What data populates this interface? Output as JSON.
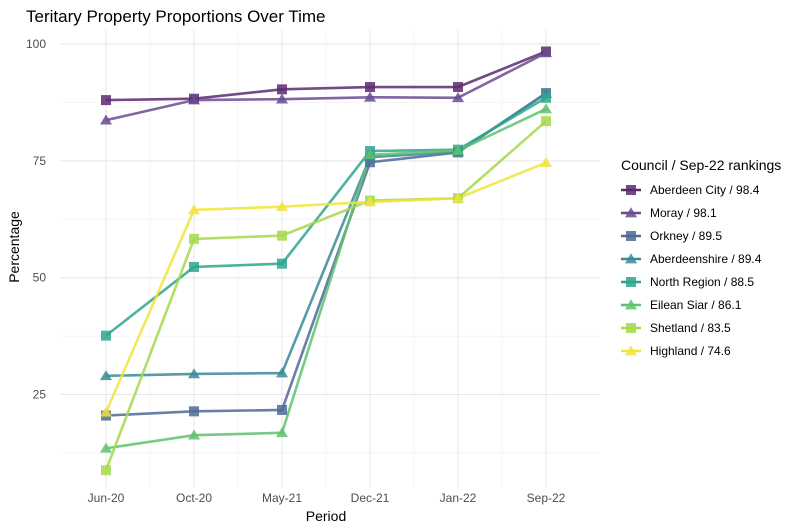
{
  "chart_data": {
    "type": "line",
    "title": "Teritary Property Proportions Over Time",
    "xlabel": "Period",
    "ylabel": "Percentage",
    "categories": [
      "Jun-20",
      "Oct-20",
      "May-21",
      "Dec-21",
      "Jan-22",
      "Sep-22"
    ],
    "ylim": [
      5,
      103
    ],
    "yticks": [
      25,
      50,
      75,
      100
    ],
    "grid": true,
    "legend": {
      "title": "Council / Sep-22 rankings",
      "position": "right"
    },
    "series": [
      {
        "name": "Aberdeen City / 98.4",
        "marker": "square",
        "color": "#5b2a6e",
        "values": [
          88.0,
          88.3,
          90.3,
          90.8,
          90.8,
          98.4
        ]
      },
      {
        "name": "Moray / 98.1",
        "marker": "triangle",
        "color": "#6a4b93",
        "values": [
          83.7,
          88.0,
          88.2,
          88.6,
          88.5,
          98.1
        ]
      },
      {
        "name": "Orkney / 89.5",
        "marker": "square",
        "color": "#4f6a96",
        "values": [
          20.5,
          21.4,
          21.7,
          74.7,
          76.8,
          89.5
        ]
      },
      {
        "name": "Aberdeenshire / 89.4",
        "marker": "triangle",
        "color": "#3a8a99",
        "values": [
          29.0,
          29.4,
          29.6,
          75.8,
          76.9,
          89.4
        ]
      },
      {
        "name": "North Region / 88.5",
        "marker": "square",
        "color": "#2ea58d",
        "values": [
          37.6,
          52.3,
          53.0,
          77.1,
          77.4,
          88.5
        ]
      },
      {
        "name": "Eilean Siar / 86.1",
        "marker": "triangle",
        "color": "#5ec26f",
        "values": [
          13.5,
          16.3,
          16.8,
          76.3,
          77.2,
          86.1
        ]
      },
      {
        "name": "Shetland / 83.5",
        "marker": "square",
        "color": "#a6d84b",
        "values": [
          8.8,
          58.3,
          59.0,
          66.5,
          67.0,
          83.5
        ]
      },
      {
        "name": "Highland / 74.6",
        "marker": "triangle",
        "color": "#f2e33b",
        "values": [
          21.2,
          64.5,
          65.2,
          66.2,
          67.0,
          74.6
        ]
      }
    ]
  }
}
